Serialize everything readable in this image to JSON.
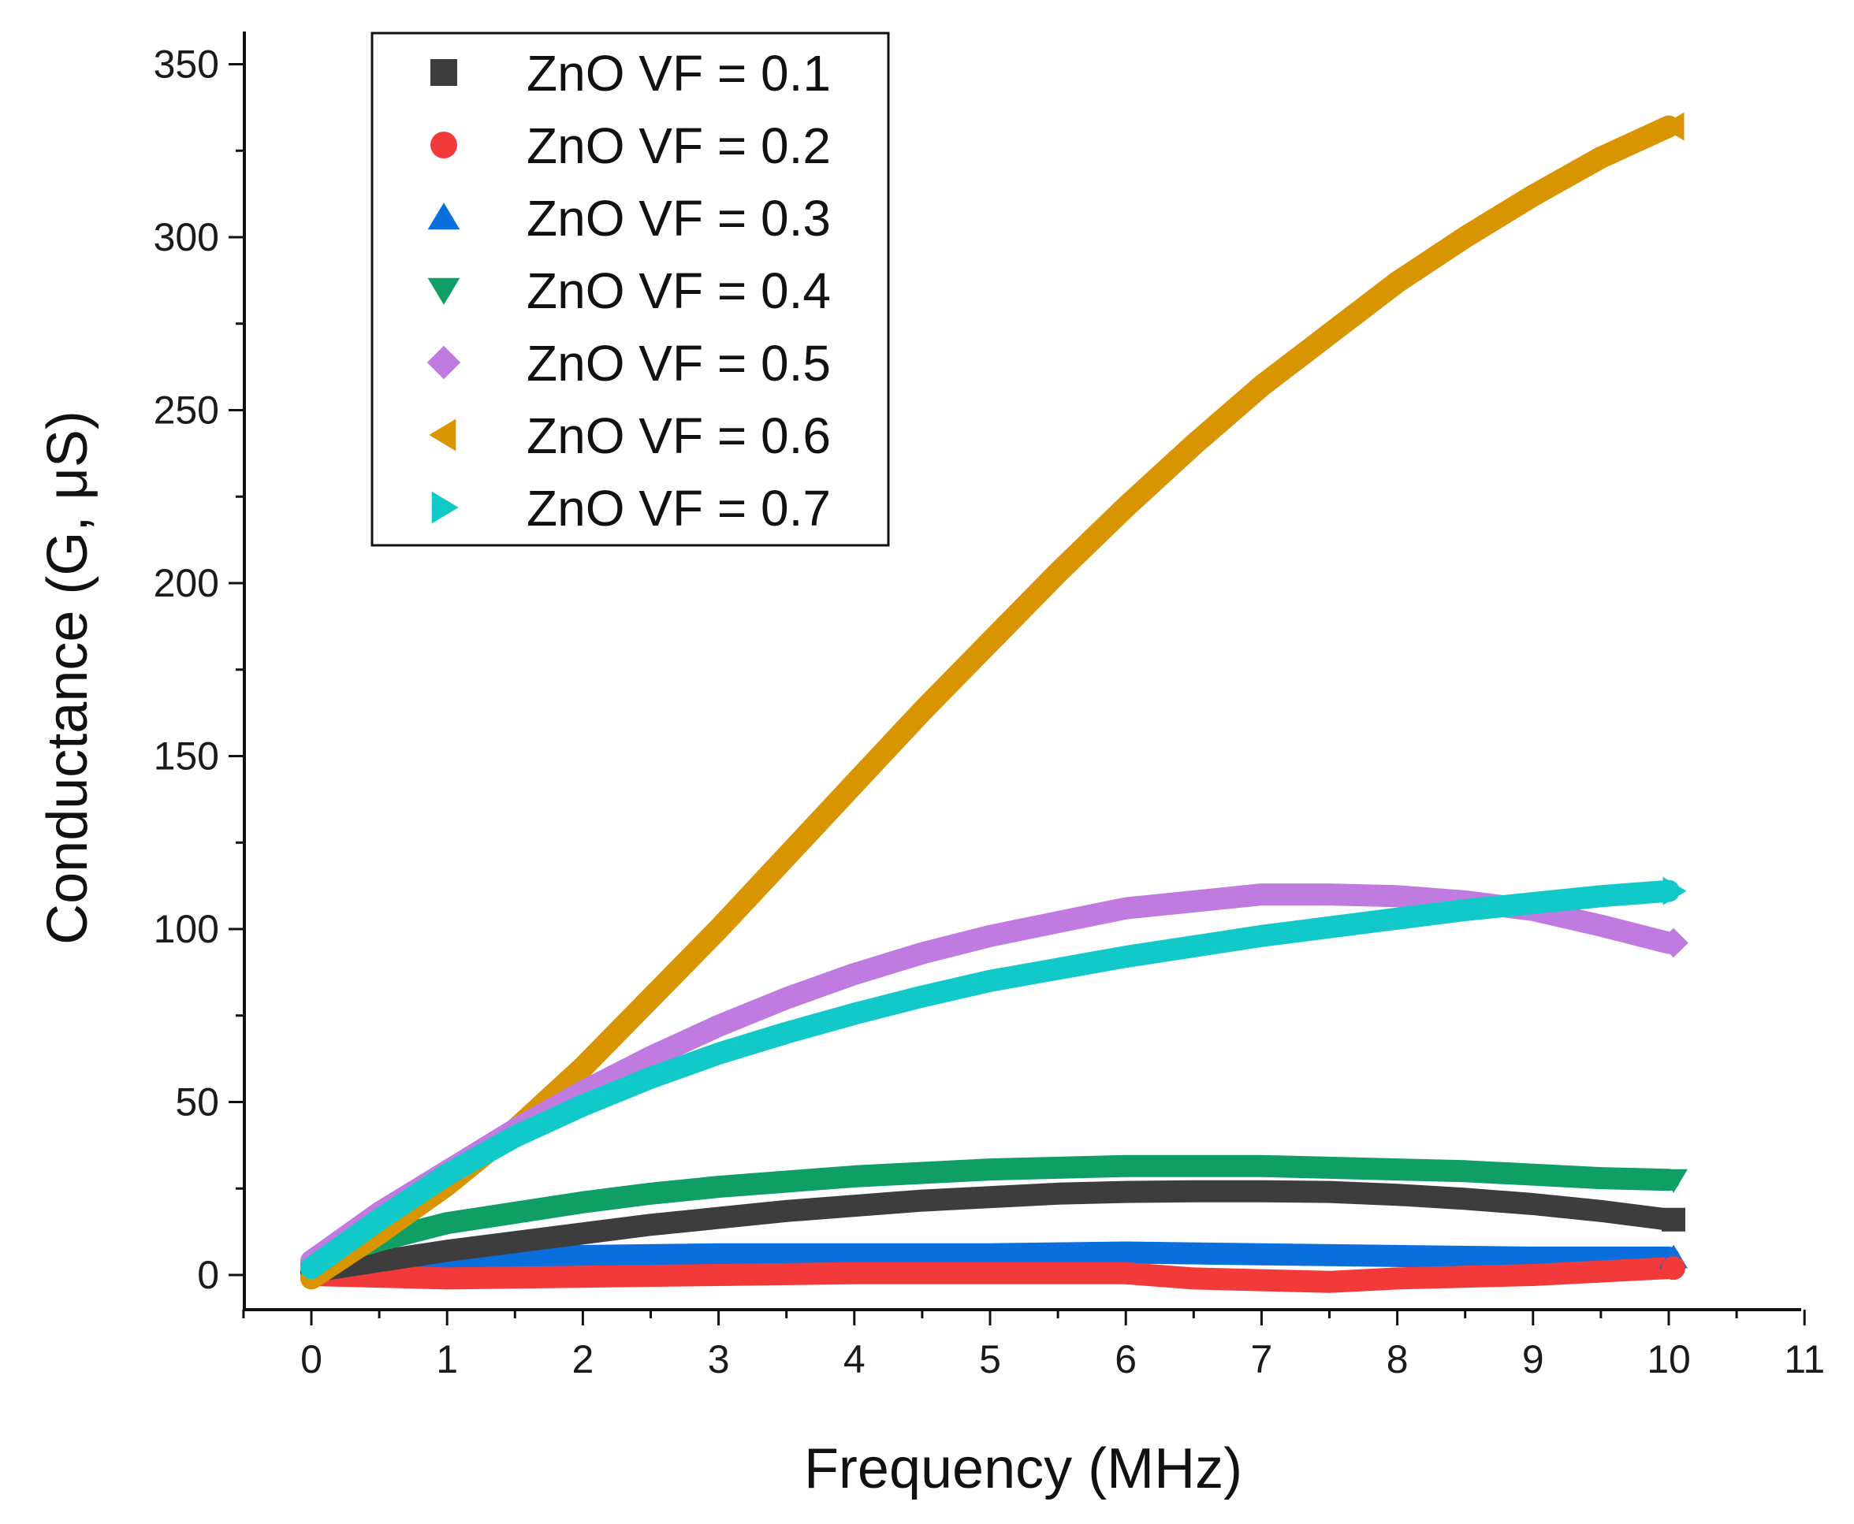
{
  "chart_data": {
    "type": "scatter",
    "xlabel": "Frequency (MHz)",
    "ylabel": "Conductance (G, μS)",
    "xlim": [
      -0.5,
      11
    ],
    "ylim": [
      -10,
      350
    ],
    "xticks": [
      0,
      1,
      2,
      3,
      4,
      5,
      6,
      7,
      8,
      9,
      10,
      11
    ],
    "yticks": [
      0,
      50,
      100,
      150,
      200,
      250,
      300,
      350
    ],
    "legend_position": "top-left",
    "series": [
      {
        "name": "ZnO VF = 0.1",
        "marker": "square",
        "color": "#3d3d3d",
        "x": [
          0,
          0.5,
          1,
          1.5,
          2,
          2.5,
          3,
          3.5,
          4,
          4.5,
          5,
          5.5,
          6,
          6.5,
          7,
          7.5,
          8,
          8.5,
          9,
          9.5,
          10
        ],
        "y": [
          1,
          4,
          7,
          9.5,
          12,
          14.5,
          16.5,
          18.5,
          20,
          21.5,
          22.5,
          23.5,
          24,
          24.2,
          24.2,
          24,
          23.2,
          22,
          20.5,
          18.5,
          16
        ]
      },
      {
        "name": "ZnO VF = 0.2",
        "marker": "circle",
        "color": "#f23a3a",
        "x": [
          0,
          1,
          2,
          3,
          4,
          5,
          6,
          6.5,
          7,
          7.5,
          8,
          9,
          10
        ],
        "y": [
          0,
          -1,
          -0.5,
          0,
          0.5,
          0.5,
          0.5,
          -1,
          -1.5,
          -2,
          -1,
          0,
          2
        ]
      },
      {
        "name": "ZnO VF = 0.3",
        "marker": "triangle-up",
        "color": "#0a6fdc",
        "x": [
          0,
          0.5,
          1,
          2,
          3,
          4,
          5,
          6,
          7,
          8,
          9,
          10
        ],
        "y": [
          3,
          4,
          5,
          5.5,
          6,
          6,
          6,
          6.5,
          6,
          5.5,
          5,
          5
        ]
      },
      {
        "name": "ZnO VF = 0.4",
        "marker": "triangle-down",
        "color": "#0f9e63",
        "x": [
          0,
          0.5,
          1,
          1.5,
          2,
          2.5,
          3,
          3.5,
          4,
          4.5,
          5,
          5.5,
          6,
          6.5,
          7,
          7.5,
          8,
          8.5,
          9,
          9.5,
          10
        ],
        "y": [
          4,
          10,
          15,
          18,
          21,
          23.5,
          25.5,
          27,
          28.5,
          29.5,
          30.5,
          31,
          31.5,
          31.5,
          31.5,
          31,
          30.5,
          30,
          29,
          28,
          27.5
        ]
      },
      {
        "name": "ZnO VF = 0.5",
        "marker": "diamond",
        "color": "#bf7be0",
        "x": [
          0,
          0.5,
          1,
          1.5,
          2,
          2.5,
          3,
          3.5,
          4,
          4.5,
          5,
          5.5,
          6,
          6.5,
          7,
          7.5,
          8,
          8.5,
          9,
          9.5,
          10
        ],
        "y": [
          4,
          18,
          30,
          42,
          53,
          63,
          72,
          80,
          87,
          93,
          98,
          102,
          106,
          108,
          110,
          110,
          109.5,
          108,
          105.5,
          101,
          96
        ]
      },
      {
        "name": "ZnO VF = 0.6",
        "marker": "triangle-left",
        "color": "#d99500",
        "x": [
          0,
          0.5,
          1,
          1.5,
          2,
          2.5,
          3,
          3.5,
          4,
          4.5,
          5,
          5.5,
          6,
          6.5,
          7,
          7.5,
          8,
          8.5,
          9,
          9.5,
          10
        ],
        "y": [
          -1,
          12,
          26,
          42,
          60,
          80,
          100,
          121,
          142,
          163,
          183,
          203,
          222,
          240,
          257,
          272,
          287,
          300,
          312,
          323,
          332
        ]
      },
      {
        "name": "ZnO VF = 0.7",
        "marker": "triangle-right",
        "color": "#12c9c9",
        "x": [
          0,
          0.5,
          1,
          1.5,
          2,
          2.5,
          3,
          3.5,
          4,
          4.5,
          5,
          5.5,
          6,
          6.5,
          7,
          7.5,
          8,
          8.5,
          9,
          9.5,
          10
        ],
        "y": [
          2,
          16,
          29,
          40,
          49,
          57,
          64,
          70,
          75.5,
          80.5,
          85,
          88.5,
          92,
          95,
          98,
          100.5,
          103,
          105.5,
          107.5,
          109.5,
          111
        ]
      }
    ]
  }
}
